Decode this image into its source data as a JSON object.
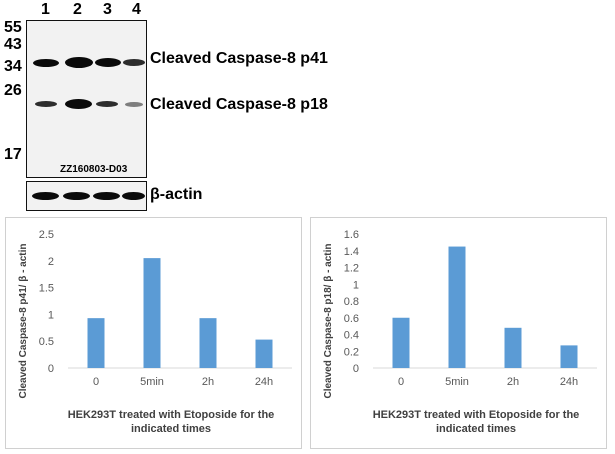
{
  "blot": {
    "lanes": [
      "1",
      "2",
      "3",
      "4"
    ],
    "markers": [
      "55",
      "43",
      "34",
      "26",
      "17"
    ],
    "id": "ZZ160803-D03",
    "labels": {
      "p41": "Cleaved Caspase-8 p41",
      "p18": "Cleaved Caspase-8 p18",
      "actin": "β-actin"
    }
  },
  "chart_data": [
    {
      "type": "bar",
      "categories": [
        "0",
        "5min",
        "2h",
        "24h"
      ],
      "values": [
        0.93,
        2.05,
        0.93,
        0.53
      ],
      "ylabel": "Cleaved Caspase-8 p41/ β - actin",
      "xlabel_lines": [
        "HEK293T treated with Etoposide for the",
        "indicated times"
      ],
      "ylim": [
        0,
        2.5
      ],
      "yticks": [
        "0",
        "0.5",
        "1",
        "1.5",
        "2",
        "2.5"
      ],
      "bar_color": "#5b9bd5"
    },
    {
      "type": "bar",
      "categories": [
        "0",
        "5min",
        "2h",
        "24h"
      ],
      "values": [
        0.6,
        1.45,
        0.48,
        0.27
      ],
      "ylabel": "Cleaved Caspase-8 p18/ β - actin",
      "xlabel_lines": [
        "HEK293T treated with Etoposide for the",
        "indicated times"
      ],
      "ylim": [
        0,
        1.6
      ],
      "yticks": [
        "0",
        "0.2",
        "0.4",
        "0.6",
        "0.8",
        "1",
        "1.2",
        "1.4",
        "1.6"
      ],
      "bar_color": "#5b9bd5"
    }
  ]
}
